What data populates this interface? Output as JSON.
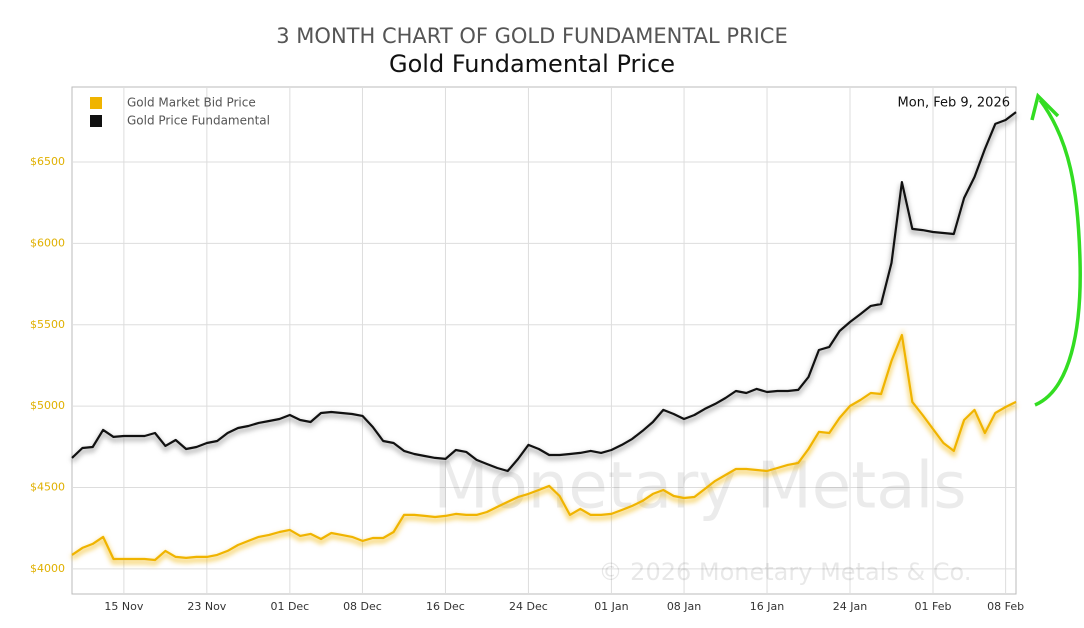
{
  "chart_data": {
    "type": "line",
    "title": "3 MONTH CHART OF GOLD FUNDAMENTAL PRICE",
    "subtitle": "Gold Fundamental Price",
    "annotation": "Mon, Feb 9, 2026",
    "watermark": "Monetary Metals",
    "copyright": "© 2026 Monetary Metals & Co.",
    "legend": "top-left",
    "grid": true,
    "x": [
      "10 Nov",
      "11 Nov",
      "12 Nov",
      "13 Nov",
      "14 Nov",
      "15 Nov",
      "16 Nov",
      "17 Nov",
      "18 Nov",
      "19 Nov",
      "20 Nov",
      "21 Nov",
      "22 Nov",
      "23 Nov",
      "24 Nov",
      "25 Nov",
      "26 Nov",
      "27 Nov",
      "28 Nov",
      "29 Nov",
      "30 Nov",
      "01 Dec",
      "02 Dec",
      "03 Dec",
      "04 Dec",
      "05 Dec",
      "06 Dec",
      "07 Dec",
      "08 Dec",
      "09 Dec",
      "10 Dec",
      "11 Dec",
      "12 Dec",
      "13 Dec",
      "14 Dec",
      "15 Dec",
      "16 Dec",
      "17 Dec",
      "18 Dec",
      "19 Dec",
      "20 Dec",
      "21 Dec",
      "22 Dec",
      "23 Dec",
      "24 Dec",
      "25 Dec",
      "26 Dec",
      "27 Dec",
      "28 Dec",
      "29 Dec",
      "30 Dec",
      "31 Dec",
      "01 Jan",
      "02 Jan",
      "03 Jan",
      "04 Jan",
      "05 Jan",
      "06 Jan",
      "07 Jan",
      "08 Jan",
      "09 Jan",
      "10 Jan",
      "11 Jan",
      "12 Jan",
      "13 Jan",
      "14 Jan",
      "15 Jan",
      "16 Jan",
      "17 Jan",
      "18 Jan",
      "19 Jan",
      "20 Jan",
      "21 Jan",
      "22 Jan",
      "23 Jan",
      "24 Jan",
      "25 Jan",
      "26 Jan",
      "27 Jan",
      "28 Jan",
      "29 Jan",
      "30 Jan",
      "31 Jan",
      "01 Feb",
      "02 Feb",
      "03 Feb",
      "04 Feb",
      "05 Feb",
      "06 Feb",
      "07 Feb",
      "08 Feb",
      "09 Feb"
    ],
    "xticks": [
      "15 Nov",
      "23 Nov",
      "01 Dec",
      "08 Dec",
      "16 Dec",
      "24 Dec",
      "01 Jan",
      "08 Jan",
      "16 Jan",
      "24 Jan",
      "01 Feb",
      "08 Feb"
    ],
    "ylim": [
      3846,
      6961
    ],
    "yticks": [
      {
        "value": 4000,
        "label": "$4000"
      },
      {
        "value": 4500,
        "label": "$4500"
      },
      {
        "value": 5000,
        "label": "$5000"
      },
      {
        "value": 5500,
        "label": "$5500"
      },
      {
        "value": 6000,
        "label": "$6000"
      },
      {
        "value": 6500,
        "label": "$6500"
      }
    ],
    "series": [
      {
        "name": "Gold Market Bid Price",
        "color": "#f0b400",
        "values": [
          4086,
          4129,
          4154,
          4197,
          4061,
          4061,
          4061,
          4061,
          4055,
          4111,
          4074,
          4068,
          4074,
          4074,
          4086,
          4111,
          4147,
          4172,
          4197,
          4209,
          4227,
          4240,
          4203,
          4215,
          4184,
          4221,
          4209,
          4197,
          4172,
          4190,
          4190,
          4227,
          4332,
          4332,
          4326,
          4319,
          4326,
          4338,
          4332,
          4332,
          4350,
          4381,
          4412,
          4442,
          4461,
          4485,
          4510,
          4448,
          4332,
          4369,
          4332,
          4332,
          4338,
          4362,
          4387,
          4418,
          4461,
          4485,
          4448,
          4436,
          4442,
          4491,
          4541,
          4577,
          4614,
          4614,
          4608,
          4602,
          4620,
          4639,
          4651,
          4737,
          4842,
          4835,
          4928,
          5001,
          5038,
          5081,
          5075,
          5278,
          5437,
          5026,
          4946,
          4860,
          4774,
          4725,
          4915,
          4977,
          4835,
          4958,
          4995,
          5026
        ]
      },
      {
        "name": "Gold Price Fundamental",
        "color": "#111111",
        "values": [
          4682,
          4743,
          4749,
          4854,
          4811,
          4817,
          4817,
          4817,
          4835,
          4756,
          4792,
          4737,
          4749,
          4774,
          4786,
          4835,
          4866,
          4878,
          4897,
          4909,
          4921,
          4946,
          4915,
          4903,
          4958,
          4964,
          4958,
          4952,
          4940,
          4872,
          4786,
          4774,
          4725,
          4706,
          4694,
          4682,
          4676,
          4731,
          4719,
          4670,
          4645,
          4620,
          4602,
          4676,
          4762,
          4737,
          4700,
          4700,
          4706,
          4713,
          4725,
          4713,
          4731,
          4762,
          4799,
          4848,
          4903,
          4977,
          4952,
          4921,
          4946,
          4983,
          5014,
          5050,
          5093,
          5081,
          5106,
          5087,
          5093,
          5093,
          5100,
          5179,
          5345,
          5364,
          5462,
          5517,
          5566,
          5616,
          5628,
          5880,
          6377,
          6089,
          6082,
          6070,
          6064,
          6058,
          6279,
          6408,
          6580,
          6734,
          6758,
          6807
        ]
      }
    ]
  }
}
